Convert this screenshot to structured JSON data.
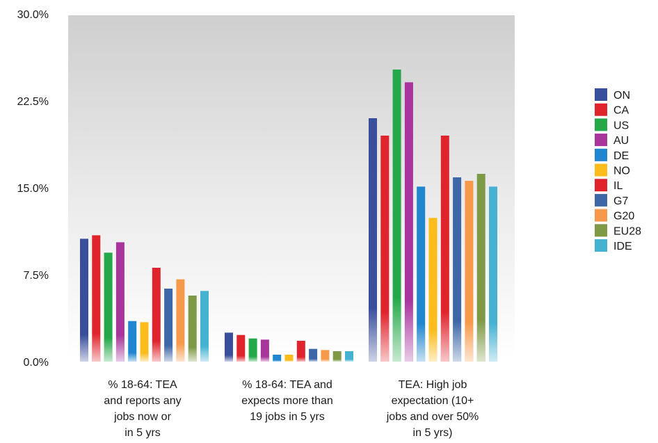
{
  "chart_data": {
    "type": "bar",
    "title": "",
    "xlabel": "",
    "ylabel": "",
    "ylim": [
      0,
      30
    ],
    "y_ticks": [
      "0.0%",
      "7.5%",
      "15.0%",
      "22.5%",
      "30.0%"
    ],
    "y_tick_values": [
      0,
      7.5,
      15,
      22.5,
      30
    ],
    "grid": false,
    "legend_position": "right",
    "categories": [
      [
        "% 18-64: TEA",
        "and reports any",
        "jobs now or",
        "in 5 yrs"
      ],
      [
        "% 18-64: TEA and",
        "expects more than",
        "19 jobs in 5 yrs"
      ],
      [
        "TEA: High job",
        "expectation (10+",
        "jobs and over 50%",
        "in 5 yrs)"
      ]
    ],
    "series": [
      {
        "name": "ON",
        "color": "#3a4f9c",
        "values": [
          10.6,
          2.5,
          21.0
        ]
      },
      {
        "name": "CA",
        "color": "#e0242c",
        "values": [
          10.9,
          2.3,
          19.5
        ]
      },
      {
        "name": "US",
        "color": "#25a84a",
        "values": [
          9.4,
          2.0,
          25.2
        ]
      },
      {
        "name": "AU",
        "color": "#a7359c",
        "values": [
          10.3,
          1.9,
          24.1
        ]
      },
      {
        "name": "DE",
        "color": "#1f86cf",
        "values": [
          3.5,
          0.6,
          15.1
        ]
      },
      {
        "name": "NO",
        "color": "#fbbc1c",
        "values": [
          3.4,
          0.6,
          12.4
        ]
      },
      {
        "name": "IL",
        "color": "#e0242c",
        "values": [
          8.1,
          1.8,
          19.5
        ]
      },
      {
        "name": "G7",
        "color": "#3d67a7",
        "values": [
          6.3,
          1.1,
          15.9
        ]
      },
      {
        "name": "G20",
        "color": "#f7994a",
        "values": [
          7.1,
          1.0,
          15.6
        ]
      },
      {
        "name": "EU28",
        "color": "#7e9a46",
        "values": [
          5.7,
          0.9,
          16.2
        ]
      },
      {
        "name": "IDE",
        "color": "#45b2d2",
        "values": [
          6.1,
          0.9,
          15.1
        ]
      }
    ]
  }
}
